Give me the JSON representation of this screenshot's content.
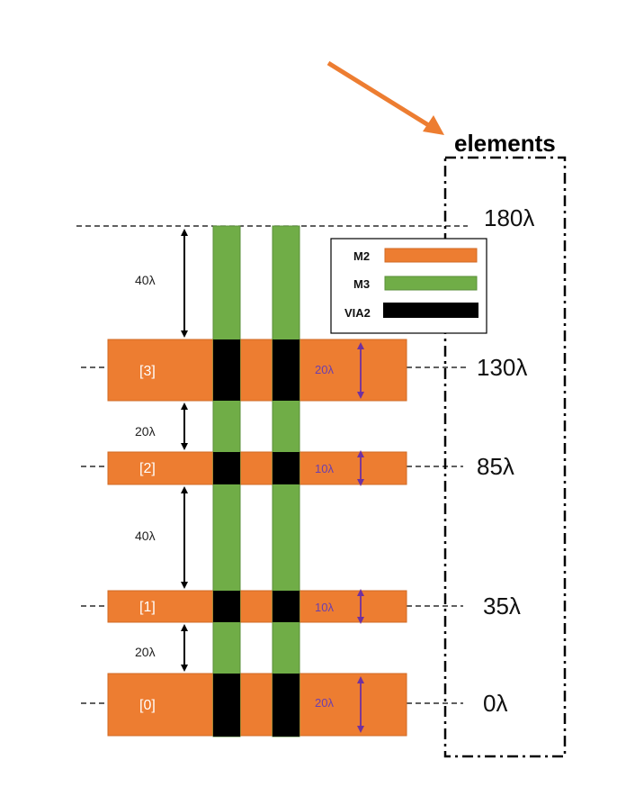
{
  "title": "elements",
  "colors": {
    "m2": "#ed7d31",
    "m3": "#70ad47",
    "via2": "#000000",
    "arrow": "#ed7d31",
    "purple": "#7030a0"
  },
  "legend": {
    "items": [
      {
        "label": "M2",
        "color": "#ed7d31"
      },
      {
        "label": "M3",
        "color": "#70ad47"
      },
      {
        "label": "VIA2",
        "color": "#000000"
      }
    ]
  },
  "levels": [
    "180λ",
    "130λ",
    "85λ",
    "35λ",
    "0λ"
  ],
  "elements": [
    {
      "index": "[3]",
      "thickness": "20λ"
    },
    {
      "index": "[2]",
      "thickness": "10λ"
    },
    {
      "index": "[1]",
      "thickness": "10λ"
    },
    {
      "index": "[0]",
      "thickness": "20λ"
    }
  ],
  "gaps": [
    "40λ",
    "20λ",
    "40λ",
    "20λ"
  ]
}
